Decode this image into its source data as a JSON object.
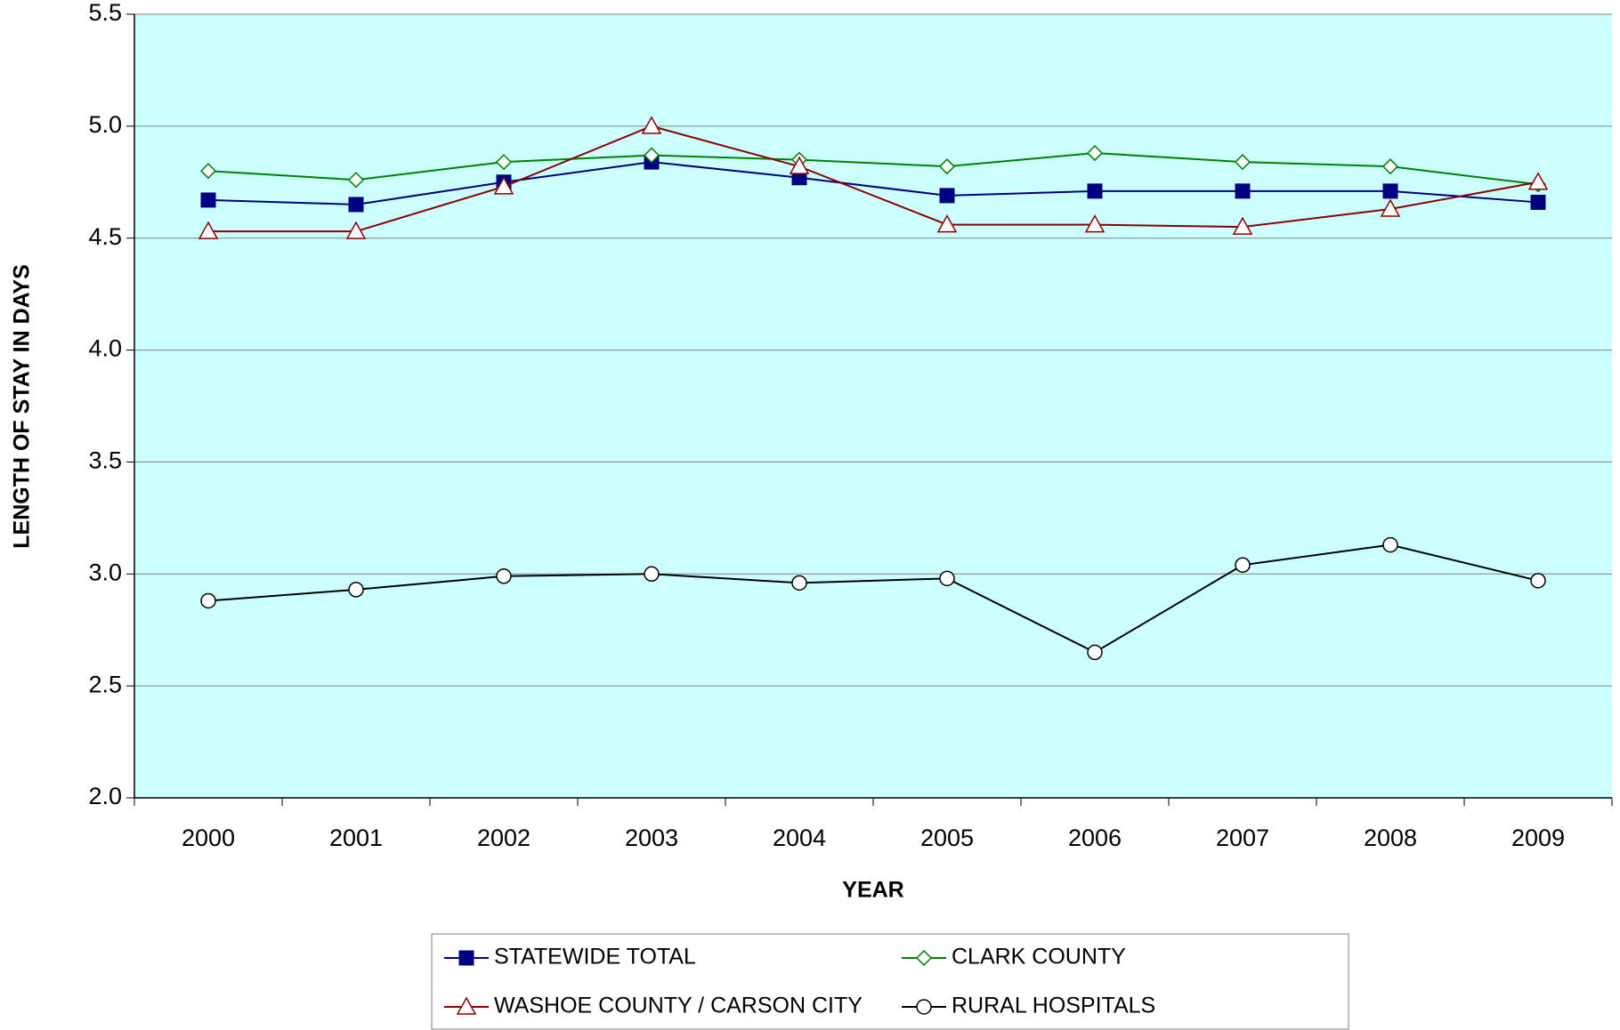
{
  "chart_data": {
    "type": "line",
    "x_label": "YEAR",
    "y_label": "LENGTH OF STAY IN DAYS",
    "categories": [
      "2000",
      "2001",
      "2002",
      "2003",
      "2004",
      "2005",
      "2006",
      "2007",
      "2008",
      "2009"
    ],
    "series": [
      {
        "name": "STATEWIDE TOTAL",
        "color": "#000080",
        "marker": "square",
        "values": [
          4.67,
          4.65,
          4.75,
          4.84,
          4.77,
          4.69,
          4.71,
          4.71,
          4.71,
          4.66
        ]
      },
      {
        "name": "CLARK COUNTY",
        "color": "#008000",
        "marker": "diamond",
        "values": [
          4.8,
          4.76,
          4.84,
          4.87,
          4.85,
          4.82,
          4.88,
          4.84,
          4.82,
          4.74
        ]
      },
      {
        "name": "WASHOE COUNTY / CARSON CITY",
        "color": "#8b0000",
        "marker": "triangle",
        "values": [
          4.53,
          4.53,
          4.73,
          5.0,
          4.82,
          4.56,
          4.56,
          4.55,
          4.63,
          4.75
        ]
      },
      {
        "name": "RURAL HOSPITALS",
        "color": "#000000",
        "marker": "circle",
        "values": [
          2.88,
          2.93,
          2.99,
          3.0,
          2.96,
          2.98,
          2.65,
          3.04,
          3.13,
          2.97
        ]
      }
    ],
    "ylim": [
      2,
      5.5
    ],
    "yticks": [
      {
        "value": 2,
        "label": "2.0"
      },
      {
        "value": 2.5,
        "label": "2.5"
      },
      {
        "value": 3,
        "label": "3.0"
      },
      {
        "value": 3.5,
        "label": "3.5"
      },
      {
        "value": 4,
        "label": "4.0"
      },
      {
        "value": 4.5,
        "label": "4.5"
      },
      {
        "value": 5,
        "label": "5.0"
      },
      {
        "value": 5.5,
        "label": "5.5"
      }
    ],
    "grid": true,
    "plot_background": "#ccffff",
    "legend": "bottom"
  }
}
